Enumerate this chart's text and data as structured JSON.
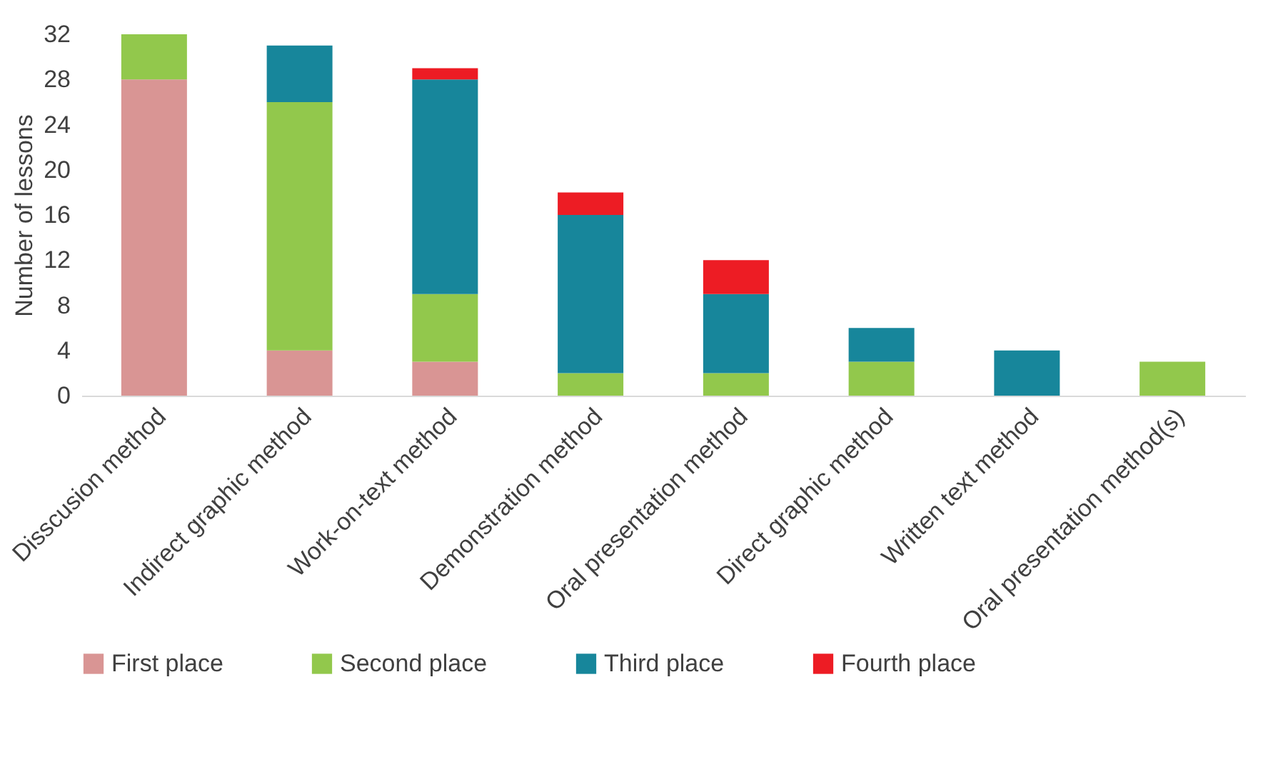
{
  "chart_data": {
    "type": "bar",
    "stacked": true,
    "ylabel": "Number of lessons",
    "categories": [
      "Disscusion method",
      "Indirect graphic method",
      "Work-on-text method",
      "Demonstration method",
      "Oral presentation method",
      "Direct graphic method",
      "Written text method",
      "Oral presentation method(s)"
    ],
    "series": [
      {
        "name": "First place",
        "color": "#d99594",
        "values": [
          28,
          4,
          3,
          null,
          null,
          null,
          null,
          null
        ]
      },
      {
        "name": "Second place",
        "color": "#92c84c",
        "values": [
          4,
          22,
          6,
          2,
          2,
          3,
          null,
          3
        ]
      },
      {
        "name": "Third place",
        "color": "#17869b",
        "values": [
          null,
          5,
          19,
          14,
          7,
          3,
          4,
          null
        ]
      },
      {
        "name": "Fourth place",
        "color": "#ed1c24",
        "values": [
          null,
          null,
          1,
          2,
          3,
          null,
          null,
          null
        ]
      }
    ],
    "ylim": [
      0,
      32
    ],
    "yticks": [
      0,
      4,
      8,
      12,
      16,
      20,
      24,
      28,
      32
    ],
    "grid": false,
    "legend": "bottom"
  }
}
